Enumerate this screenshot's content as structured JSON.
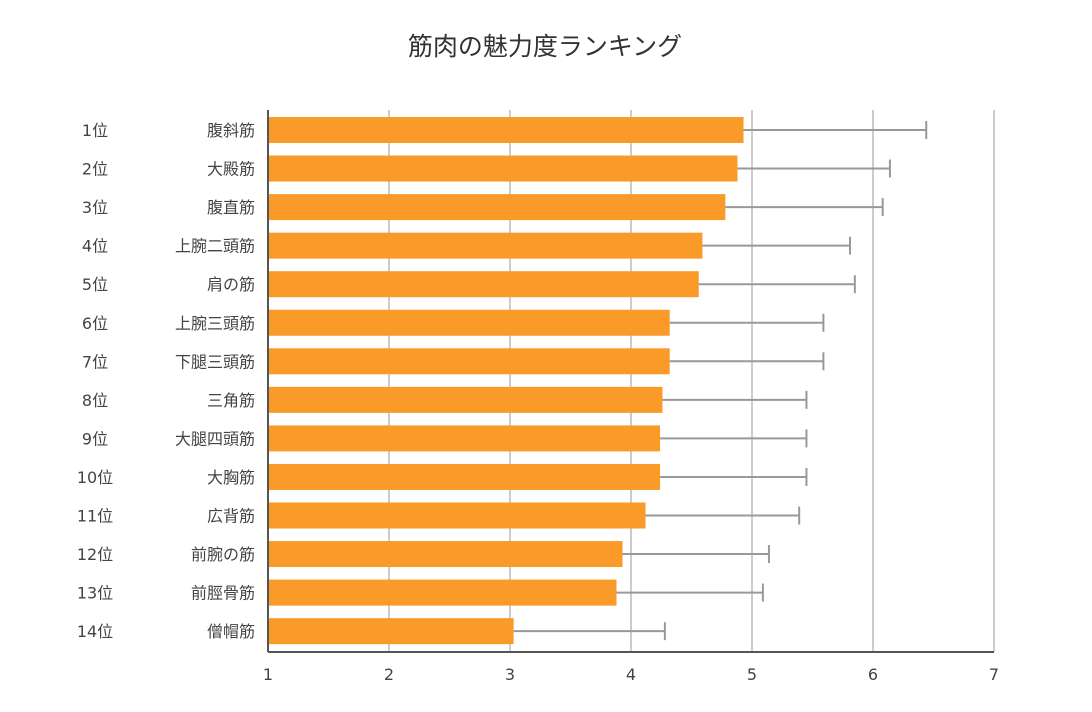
{
  "chart_data": {
    "type": "bar",
    "orientation": "horizontal",
    "title": "筋肉の魅力度ランキング",
    "xlabel": "",
    "ylabel": "",
    "xlim": [
      1,
      7
    ],
    "xticks": [
      "1",
      "2",
      "3",
      "4",
      "5",
      "6",
      "7"
    ],
    "grid": true,
    "ranks": [
      "1位",
      "2位",
      "3位",
      "4位",
      "5位",
      "6位",
      "7位",
      "8位",
      "9位",
      "10位",
      "11位",
      "12位",
      "13位",
      "14位"
    ],
    "categories": [
      "腹斜筋",
      "大殿筋",
      "腹直筋",
      "上腕二頭筋",
      "肩の筋",
      "上腕三頭筋",
      "下腿三頭筋",
      "三角筋",
      "大腿四頭筋",
      "大胸筋",
      "広背筋",
      "前腕の筋",
      "前脛骨筋",
      "僧帽筋"
    ],
    "values": [
      4.93,
      4.88,
      4.78,
      4.59,
      4.56,
      4.32,
      4.32,
      4.26,
      4.24,
      4.24,
      4.12,
      3.93,
      3.88,
      3.03
    ],
    "error_upper": [
      6.44,
      6.14,
      6.08,
      5.81,
      5.85,
      5.59,
      5.59,
      5.45,
      5.45,
      5.45,
      5.39,
      5.14,
      5.09,
      4.28
    ],
    "colors": {
      "bar": "#fa9a28",
      "error": "#999999",
      "grid": "#cccccc",
      "axis": "#555555"
    }
  }
}
